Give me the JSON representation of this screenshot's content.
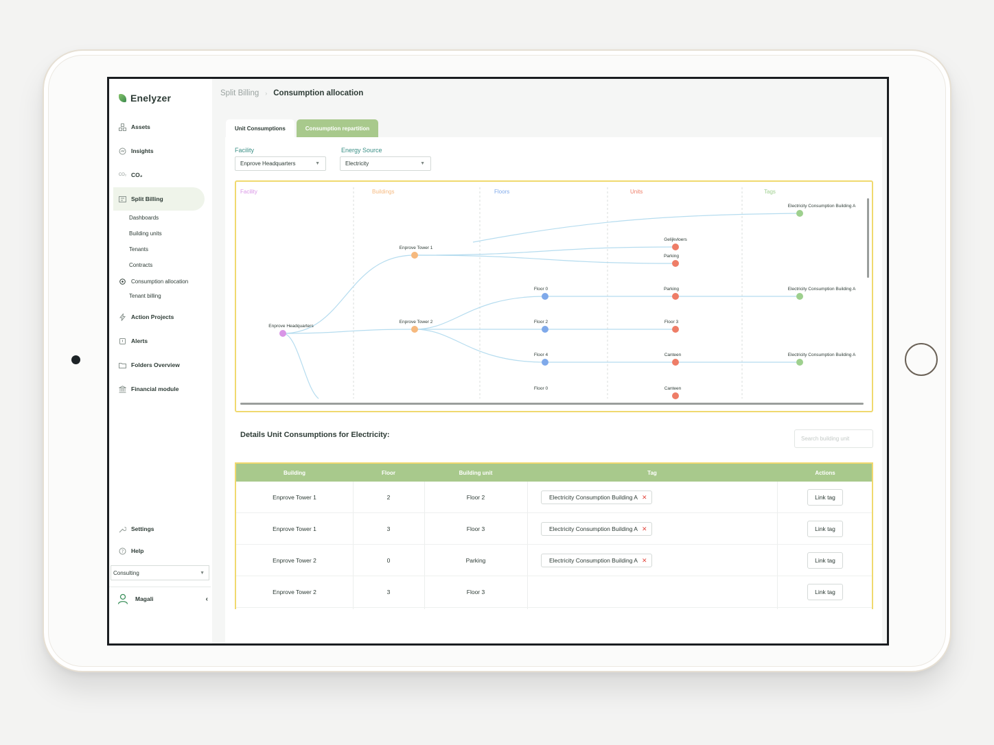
{
  "app": {
    "name": "Enelyzer"
  },
  "sidebar": {
    "items": [
      {
        "label": "Assets",
        "icon": "assets-icon"
      },
      {
        "label": "Insights",
        "icon": "insights-icon"
      },
      {
        "label": "CO₂",
        "icon": "co2-icon",
        "icon_text": "CO₂"
      },
      {
        "label": "Split Billing",
        "icon": "split-billing-icon",
        "active": true
      },
      {
        "label": "Action Projects",
        "icon": "lightning-icon"
      },
      {
        "label": "Alerts",
        "icon": "alert-icon"
      },
      {
        "label": "Folders Overview",
        "icon": "folder-icon"
      },
      {
        "label": "Financial module",
        "icon": "bank-icon"
      }
    ],
    "subitems": [
      "Dashboards",
      "Building units",
      "Tenants",
      "Contracts",
      "Consumption allocation",
      "Tenant billing"
    ],
    "settings": "Settings",
    "help": "Help",
    "org_select": "Consulting",
    "user": "Magali"
  },
  "header": {
    "breadcrumb_parent": "Split Billing",
    "breadcrumb_current": "Consumption allocation"
  },
  "tabs": [
    {
      "label": "Unit Consumptions",
      "active": false
    },
    {
      "label": "Consumption repartition",
      "active": true
    }
  ],
  "filters": {
    "facility_label": "Facility",
    "facility_value": "Enprove Headquarters",
    "energy_label": "Energy Source",
    "energy_value": "Electricity"
  },
  "tree": {
    "columns": [
      {
        "label": "Facility",
        "color": "#d995e6"
      },
      {
        "label": "Buildings",
        "color": "#f6b97e"
      },
      {
        "label": "Floors",
        "color": "#7fa9ea"
      },
      {
        "label": "Units",
        "color": "#ee7d67"
      },
      {
        "label": "Tags",
        "color": "#9ed08e"
      }
    ],
    "nodes": [
      {
        "label": "Enprove Headquarters",
        "level": 0
      },
      {
        "label": "Enprove Tower 1",
        "level": 1
      },
      {
        "label": "Enprove Tower 2",
        "level": 1
      },
      {
        "label": "Floor 0",
        "level": 2
      },
      {
        "label": "Floor 2",
        "level": 2
      },
      {
        "label": "Floor 4",
        "level": 2
      },
      {
        "label": "Floor 0",
        "level": 2
      },
      {
        "label": "Gelijkvloers",
        "level": 3
      },
      {
        "label": "Parking",
        "level": 3
      },
      {
        "label": "Parking",
        "level": 3
      },
      {
        "label": "Floor 3",
        "level": 3
      },
      {
        "label": "Canteen",
        "level": 3
      },
      {
        "label": "Canteen",
        "level": 3
      },
      {
        "label": "Electricity Consumption Building A",
        "level": 4
      },
      {
        "label": "Electricity Consumption Building A",
        "level": 4
      },
      {
        "label": "Electricity Consumption Building A",
        "level": 4
      }
    ]
  },
  "details": {
    "title": "Details Unit Consumptions for Electricity:",
    "search_placeholder": "Search building unit",
    "columns": [
      "Building",
      "Floor",
      "Building unit",
      "Tag",
      "Actions"
    ],
    "rows": [
      {
        "building": "Enprove Tower 1",
        "floor": "2",
        "unit": "Floor 2",
        "tag": "Electricity Consumption Building A",
        "action": "Link tag"
      },
      {
        "building": "Enprove Tower 1",
        "floor": "3",
        "unit": "Floor 3",
        "tag": "Electricity Consumption Building A",
        "action": "Link tag"
      },
      {
        "building": "Enprove Tower 2",
        "floor": "0",
        "unit": "Parking",
        "tag": "Electricity Consumption Building A",
        "action": "Link tag"
      },
      {
        "building": "Enprove Tower 2",
        "floor": "3",
        "unit": "Floor 3",
        "tag": "",
        "action": "Link tag"
      }
    ]
  },
  "colors": {
    "accent_green": "#a8c98c",
    "highlight_yellow": "#f0d96e",
    "teal_label": "#3a8f86",
    "remove_red": "#e2473d"
  }
}
